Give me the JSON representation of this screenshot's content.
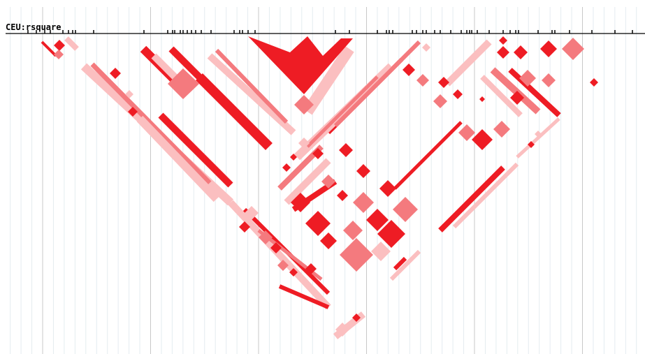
{
  "track": {
    "label": "CEU:rsquare"
  }
}
